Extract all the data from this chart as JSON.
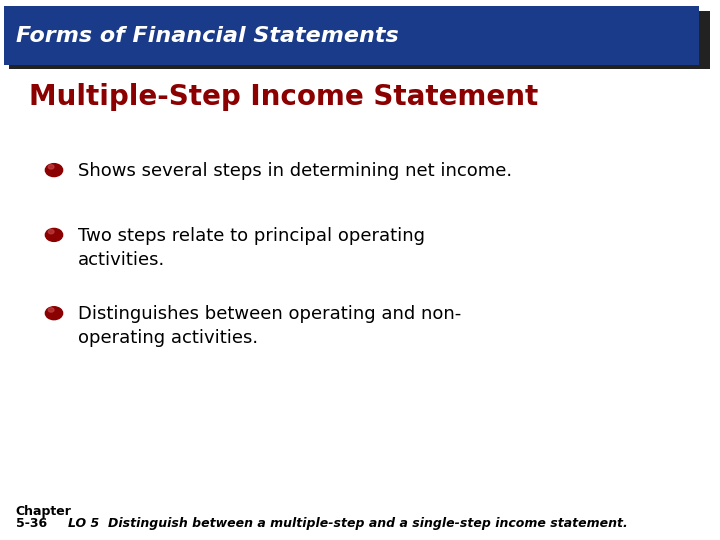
{
  "bg_color": "#ffffff",
  "header_bg": "#1a3a8a",
  "header_shadow_color": "#222222",
  "header_text": "Forms of Financial Statements",
  "header_text_color": "#ffffff",
  "header_font_size": 16,
  "subtitle": "Multiple-Step Income Statement",
  "subtitle_color": "#8b0000",
  "subtitle_font_size": 20,
  "bullet_color": "#8b0000",
  "bullet_text_color": "#000000",
  "bullet_font_size": 13,
  "bullets": [
    "Shows several steps in determining net income.",
    "Two steps relate to principal operating\nactivities.",
    "Distinguishes between operating and non-\noperating activities."
  ],
  "footer_chapter_line1": "Chapter",
  "footer_chapter_line2": "5-36",
  "footer_lo": "LO 5  Distinguish between a multiple-step and a single-step income statement.",
  "footer_font_size": 9
}
